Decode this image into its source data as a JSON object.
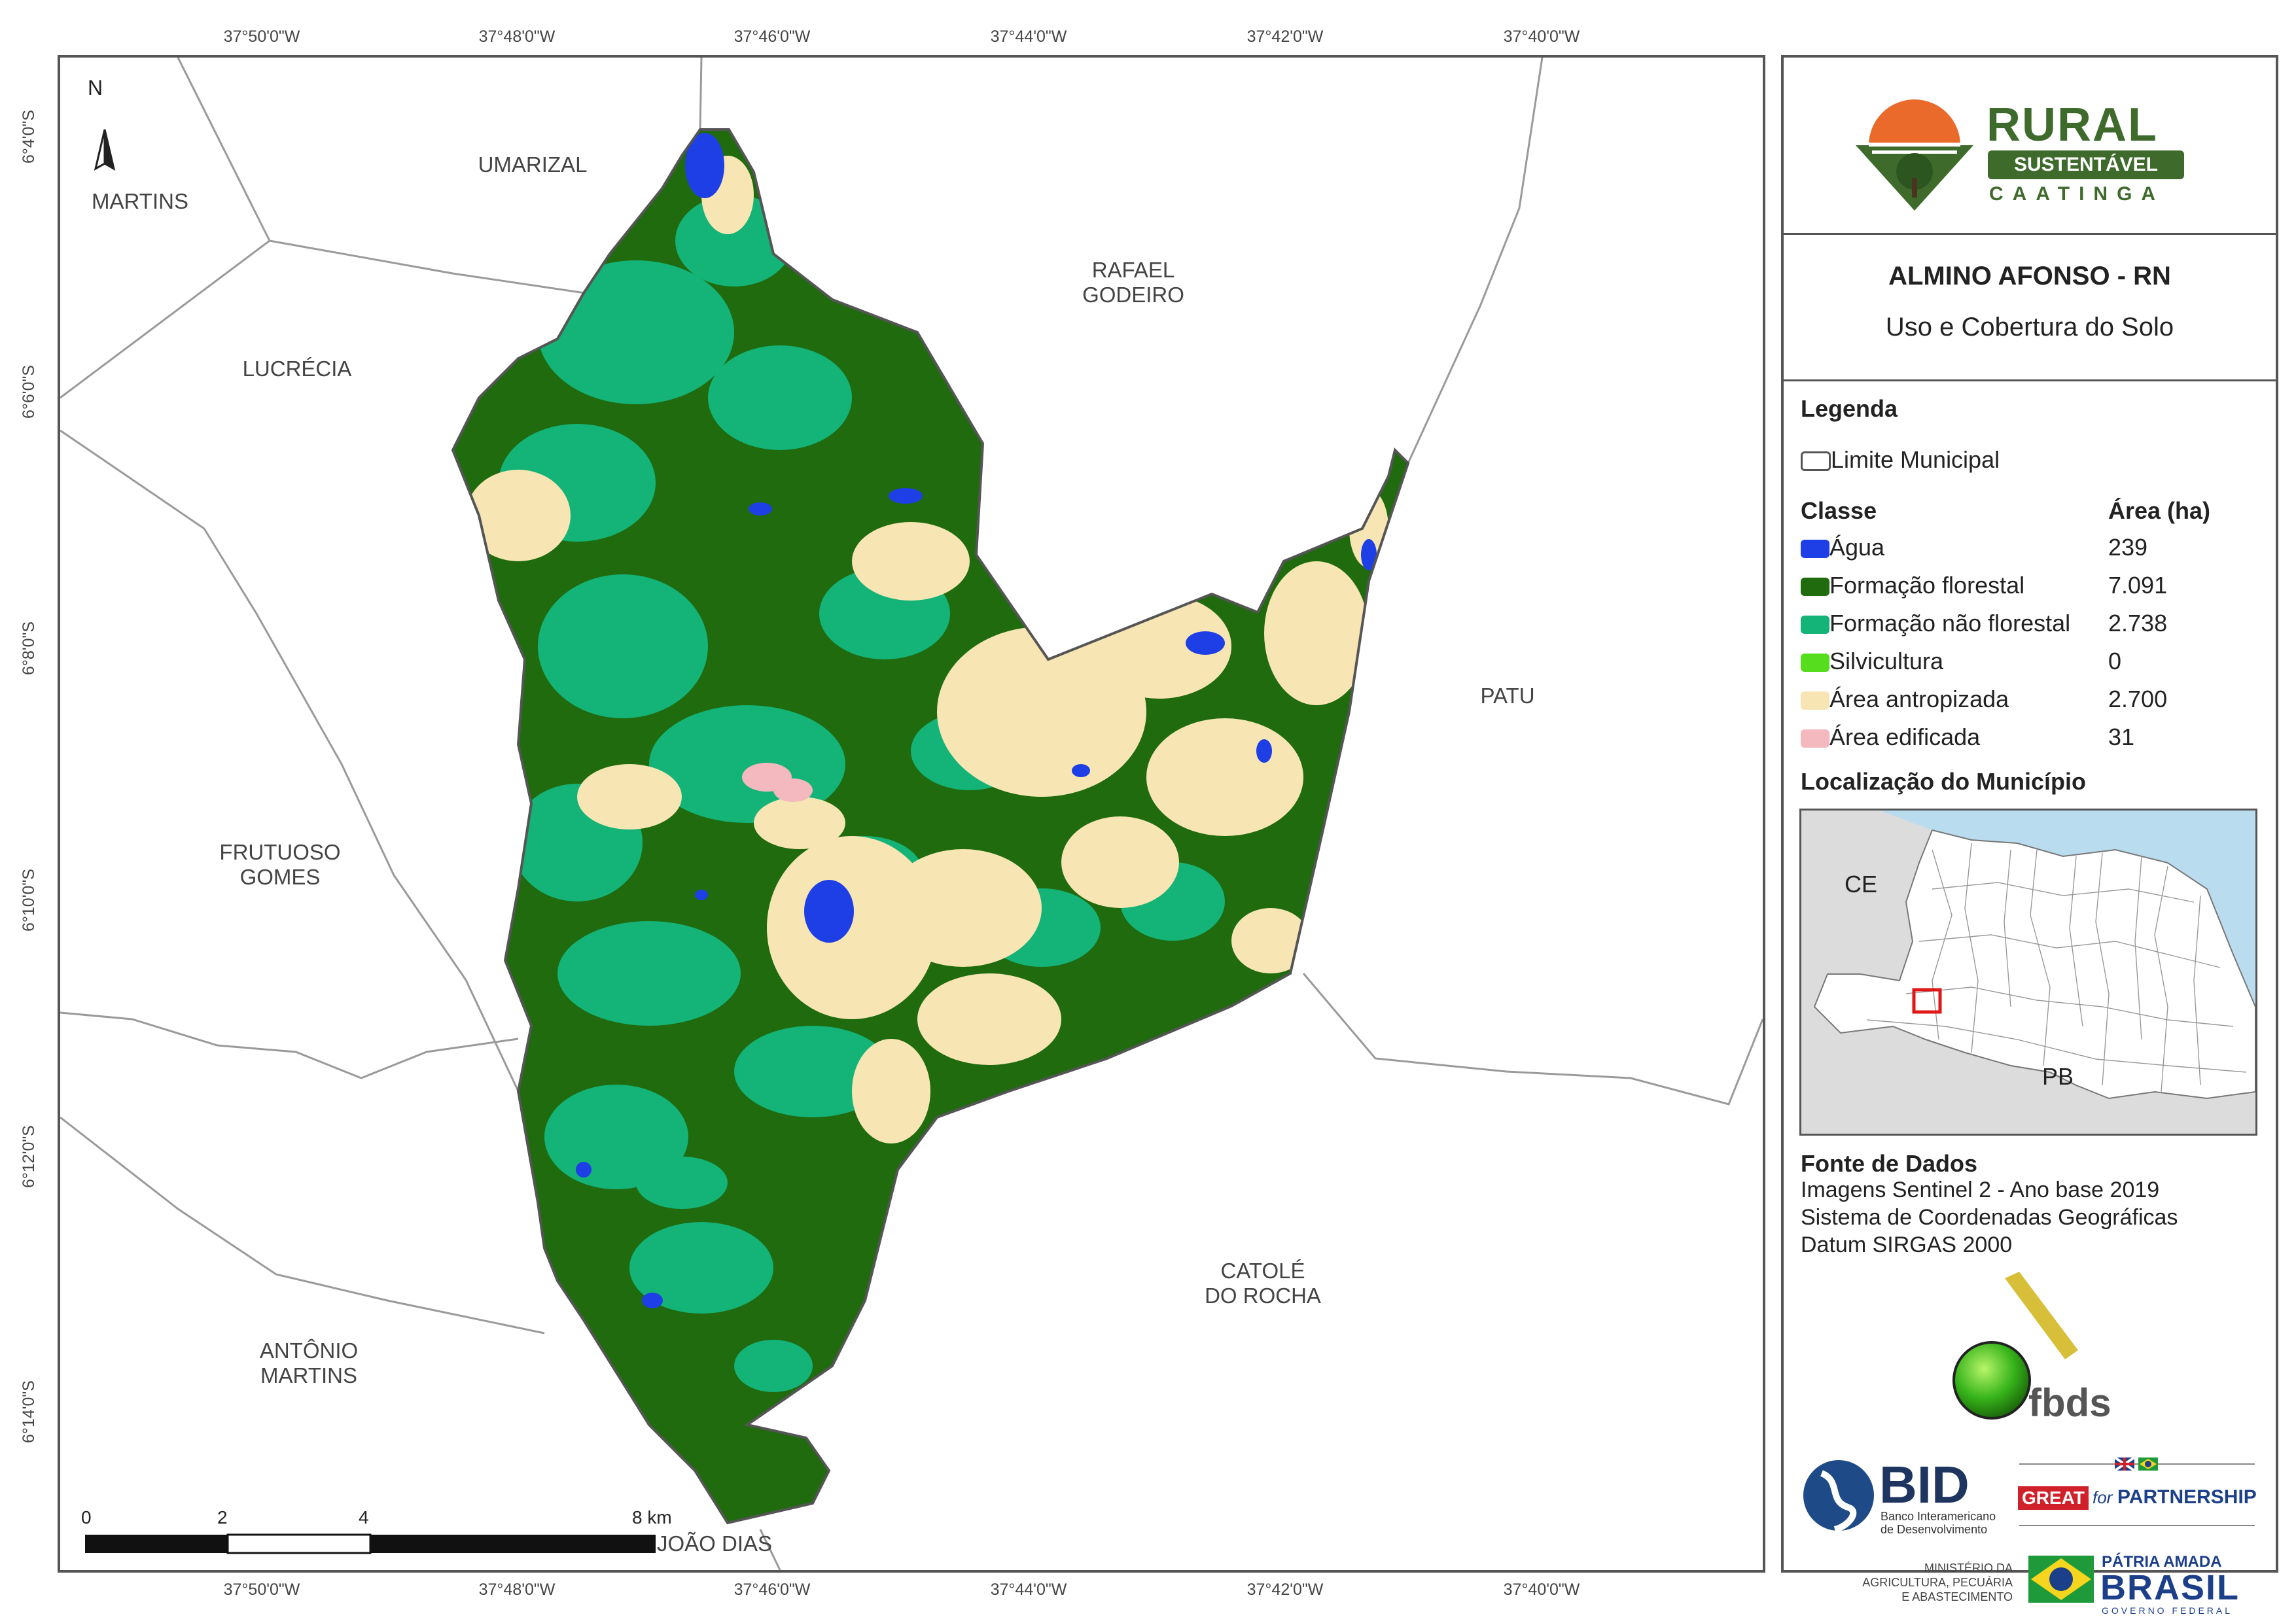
{
  "coords": {
    "top": [
      "37°50'0\"W",
      "37°48'0\"W",
      "37°46'0\"W",
      "37°44'0\"W",
      "37°42'0\"W",
      "37°40'0\"W"
    ],
    "bottom": [
      "37°50'0\"W",
      "37°48'0\"W",
      "37°46'0\"W",
      "37°44'0\"W",
      "37°42'0\"W",
      "37°40'0\"W"
    ],
    "left": [
      "6°4'0\"S",
      "6°6'0\"S",
      "6°8'0\"S",
      "6°10'0\"S",
      "6°12'0\"S",
      "6°14'0\"S"
    ]
  },
  "north_label": "N",
  "municipalities": {
    "martins": "MARTINS",
    "umarizal": "UMARIZAL",
    "rafael": "RAFAEL\nGODEIRO",
    "lucrecia": "LUCRÉCIA",
    "patu": "PATU",
    "frutuoso": "FRUTUOSO\nGOMES",
    "catole": "CATOLÉ\nDO ROCHA",
    "antonio": "ANTÔNIO\nMARTINS",
    "joao": "JOÃO DIAS"
  },
  "scale": {
    "labels": [
      "0",
      "2",
      "4",
      "8 km"
    ]
  },
  "logo": {
    "rural": "RURAL",
    "sustentavel": "SUSTENTÁVEL",
    "caatinga": "CAATINGA"
  },
  "title": {
    "main": "ALMINO AFONSO - RN",
    "sub": "Uso e Cobertura do Solo"
  },
  "legend": {
    "heading": "Legenda",
    "limite": "Limite Municipal",
    "class_header": "Classe",
    "area_header": "Área (ha)",
    "classes": [
      {
        "name": "Água",
        "area": "239",
        "color": "#1f3fe6"
      },
      {
        "name": "Formação florestal",
        "area": "7.091",
        "color": "#1f6b0e"
      },
      {
        "name": "Formação não florestal",
        "area": "2.738",
        "color": "#14b377"
      },
      {
        "name": "Silvicultura",
        "area": "0",
        "color": "#55dd1e"
      },
      {
        "name": "Área antropizada",
        "area": "2.700",
        "color": "#f7e5b4"
      },
      {
        "name": "Área edificada",
        "area": "31",
        "color": "#f4b9be"
      }
    ]
  },
  "location": {
    "heading": "Localização do Município",
    "ce": "CE",
    "pb": "PB"
  },
  "sources": {
    "heading": "Fonte de Dados",
    "lines": [
      "Imagens Sentinel 2 - Ano base 2019",
      "Sistema de Coordenadas Geográficas",
      "Datum SIRGAS 2000"
    ]
  },
  "partners": {
    "fbds": "fbds",
    "bid": "BID",
    "bid_sub1": "Banco Interamericano",
    "bid_sub2": "de Desenvolvimento",
    "great": "GREAT",
    "great_for": "for",
    "partnership": "PARTNERSHIP",
    "min1": "MINISTÉRIO DA",
    "min2": "AGRICULTURA, PECUÁRIA",
    "min3": "E ABASTECIMENTO",
    "patria": "PÁTRIA AMADA",
    "brasil": "BRASIL",
    "gov": "GOVERNO FEDERAL"
  }
}
